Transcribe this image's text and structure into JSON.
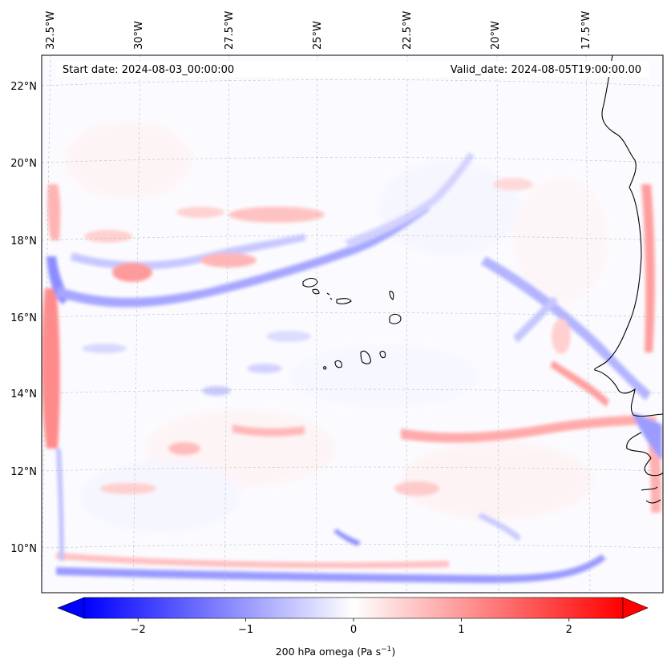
{
  "map": {
    "header": {
      "start_date": "Start date: 2024-08-03_00:00:00",
      "valid_date": "Valid_date: 2024-08-05T19:00:00.00"
    },
    "lon_labels": [
      "32.5°W",
      "30°W",
      "27.5°W",
      "25°W",
      "22.5°W",
      "20°W",
      "17.5°W"
    ],
    "lat_labels": [
      "22°N",
      "20°N",
      "18°N",
      "16°N",
      "14°N",
      "12°N",
      "10°N"
    ]
  },
  "colorbar": {
    "ticks": [
      "−2",
      "−1",
      "0",
      "1",
      "2"
    ],
    "tick_values": [
      -2,
      -1,
      0,
      1,
      2
    ],
    "range": [
      -2.5,
      2.5
    ],
    "label_main": "200 hPa omega (Pa s",
    "label_sup": "−1",
    "label_end": ")",
    "colors": {
      "negative": "#0000ff",
      "zero": "#ffffff",
      "positive": "#ff0000"
    }
  }
}
